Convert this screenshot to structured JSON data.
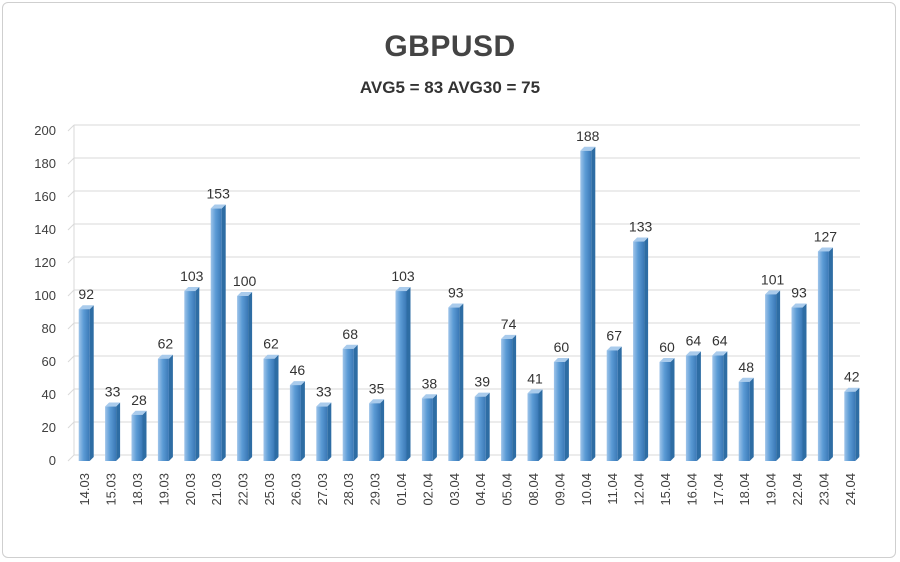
{
  "chart_data": {
    "type": "bar",
    "title": "GBPUSD",
    "subtitle": "AVG5 = 83 AVG30 = 75",
    "xlabel": "",
    "ylabel": "",
    "ylim": [
      0,
      200
    ],
    "yticks": [
      0,
      20,
      40,
      60,
      80,
      100,
      120,
      140,
      160,
      180,
      200
    ],
    "grid": true,
    "categories": [
      "14.03",
      "15.03",
      "18.03",
      "19.03",
      "20.03",
      "21.03",
      "22.03",
      "25.03",
      "26.03",
      "27.03",
      "28.03",
      "29.03",
      "01.04",
      "02.04",
      "03.04",
      "04.04",
      "05.04",
      "08.04",
      "09.04",
      "10.04",
      "11.04",
      "12.04",
      "15.04",
      "16.04",
      "17.04",
      "18.04",
      "19.04",
      "22.04",
      "23.04",
      "24.04"
    ],
    "values": [
      92,
      33,
      28,
      62,
      103,
      153,
      100,
      62,
      46,
      33,
      68,
      35,
      103,
      38,
      93,
      39,
      74,
      41,
      60,
      188,
      67,
      133,
      60,
      64,
      64,
      48,
      101,
      93,
      127,
      42
    ],
    "colors": {
      "bar": "#5b9bd5",
      "bar_light": "#a9cbec",
      "bar_dark": "#2e6da4",
      "grid": "#d9d9d9"
    }
  }
}
